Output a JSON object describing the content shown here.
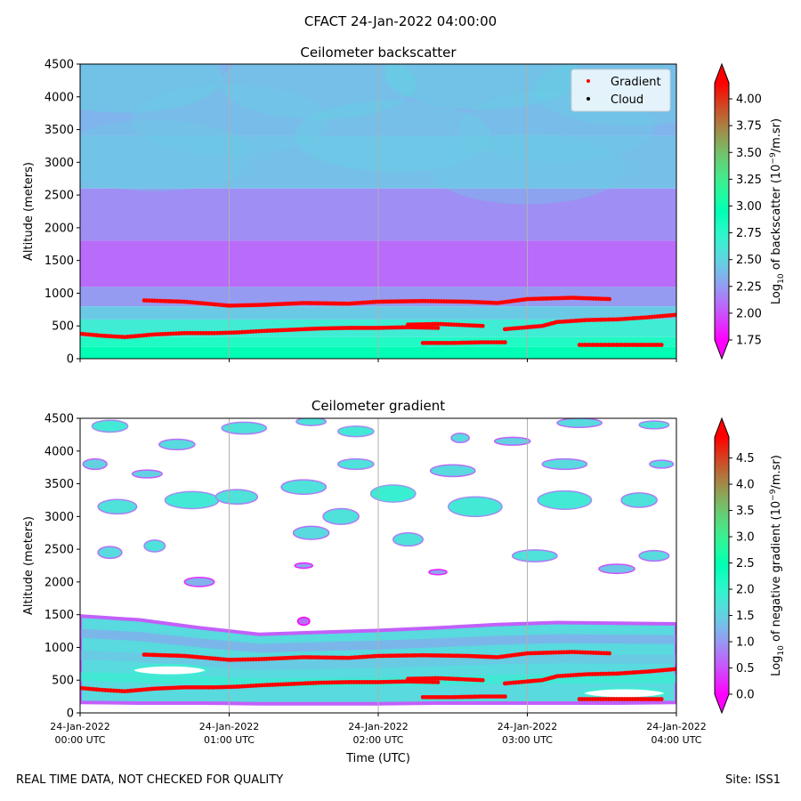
{
  "title": "CFACT 24-Jan-2022 04:00:00",
  "footer_left": "REAL TIME DATA, NOT CHECKED FOR QUALITY",
  "footer_right": "Site: ISS1",
  "chart_data": [
    {
      "type": "heatmap",
      "title": "Ceilometer backscatter",
      "ylabel": "Altitude (meters)",
      "xlabel": "",
      "ylim": [
        0,
        4500
      ],
      "xlim_hours": [
        0,
        4
      ],
      "yticks": [
        0,
        500,
        1000,
        1500,
        2000,
        2500,
        3000,
        3500,
        4000,
        4500
      ],
      "grid_x_hours": [
        1,
        2,
        3
      ],
      "colorbar": {
        "label": "Log10 of backscatter (10^-9/m.sr)",
        "label_parts": [
          "Log",
          "10",
          " of backscatter (10",
          "−9",
          "/m.sr)"
        ],
        "vmin": 1.75,
        "vmax": 4.15,
        "ticks": [
          "1.75",
          "2.00",
          "2.25",
          "2.50",
          "2.75",
          "3.00",
          "3.25",
          "3.50",
          "3.75",
          "4.00"
        ],
        "extend": "both"
      },
      "legend": {
        "position": "upper-right",
        "entries": [
          {
            "label": "Gradient",
            "color": "#ff0000"
          },
          {
            "label": "Cloud",
            "color": "#000000"
          }
        ]
      },
      "field_bands": [
        {
          "y0": 0,
          "y1": 180,
          "value": 2.95
        },
        {
          "y0": 180,
          "y1": 330,
          "value": 2.8
        },
        {
          "y0": 330,
          "y1": 600,
          "value": 2.65
        },
        {
          "y0": 600,
          "y1": 800,
          "value": 2.45
        },
        {
          "y0": 800,
          "y1": 1100,
          "value": 2.25
        },
        {
          "y0": 1100,
          "y1": 1800,
          "value": 2.08
        },
        {
          "y0": 1800,
          "y1": 2600,
          "value": 2.2
        },
        {
          "y0": 2600,
          "y1": 3400,
          "value": 2.4
        },
        {
          "y0": 3400,
          "y1": 4500,
          "value": 2.35
        }
      ],
      "field_features": [
        {
          "x": 0.3,
          "y": 4300,
          "value": 2.55
        },
        {
          "x": 1.6,
          "y": 4200,
          "value": 2.5
        },
        {
          "x": 2.7,
          "y": 4350,
          "value": 2.55
        },
        {
          "x": 3.7,
          "y": 4100,
          "value": 2.5
        },
        {
          "x": 1.0,
          "y": 3650,
          "value": 2.45
        },
        {
          "x": 2.1,
          "y": 3400,
          "value": 2.5
        },
        {
          "x": 3.2,
          "y": 3550,
          "value": 2.45
        },
        {
          "x": 0.5,
          "y": 3100,
          "value": 2.45
        },
        {
          "x": 3.0,
          "y": 2900,
          "value": 2.45
        }
      ],
      "series": [
        {
          "name": "Gradient lower layer",
          "color": "#ff0000",
          "points": [
            [
              0.0,
              380
            ],
            [
              0.15,
              350
            ],
            [
              0.3,
              330
            ],
            [
              0.5,
              370
            ],
            [
              0.7,
              390
            ],
            [
              0.9,
              390
            ],
            [
              1.05,
              400
            ],
            [
              1.2,
              420
            ],
            [
              1.4,
              440
            ],
            [
              1.6,
              460
            ],
            [
              1.8,
              470
            ],
            [
              2.0,
              470
            ],
            [
              2.2,
              480
            ],
            [
              2.4,
              470
            ]
          ]
        },
        {
          "name": "Gradient step",
          "color": "#ff0000",
          "points": [
            [
              2.2,
              520
            ],
            [
              2.4,
              530
            ],
            [
              2.6,
              510
            ],
            [
              2.7,
              500
            ]
          ]
        },
        {
          "name": "Gradient bottom",
          "color": "#ff0000",
          "points": [
            [
              2.3,
              240
            ],
            [
              2.5,
              240
            ],
            [
              2.7,
              250
            ],
            [
              2.85,
              250
            ]
          ]
        },
        {
          "name": "Gradient middle",
          "color": "#ff0000",
          "points": [
            [
              2.85,
              450
            ],
            [
              3.0,
              480
            ],
            [
              3.1,
              500
            ],
            [
              3.2,
              560
            ],
            [
              3.4,
              590
            ],
            [
              3.6,
              600
            ],
            [
              3.8,
              630
            ],
            [
              4.0,
              670
            ]
          ]
        },
        {
          "name": "Gradient lowest right",
          "color": "#ff0000",
          "points": [
            [
              3.35,
              210
            ],
            [
              3.6,
              210
            ],
            [
              3.9,
              210
            ]
          ]
        },
        {
          "name": "Gradient upper layer",
          "color": "#ff0000",
          "points": [
            [
              0.43,
              890
            ],
            [
              0.7,
              870
            ],
            [
              0.85,
              840
            ],
            [
              1.0,
              810
            ],
            [
              1.2,
              820
            ],
            [
              1.5,
              850
            ],
            [
              1.8,
              840
            ],
            [
              2.0,
              870
            ],
            [
              2.3,
              880
            ],
            [
              2.6,
              870
            ],
            [
              2.8,
              850
            ],
            [
              3.0,
              910
            ],
            [
              3.3,
              930
            ],
            [
              3.55,
              910
            ]
          ]
        }
      ]
    },
    {
      "type": "heatmap",
      "title": "Ceilometer gradient",
      "ylabel": "Altitude (meters)",
      "xlabel": "Time (UTC)",
      "ylim": [
        0,
        4500
      ],
      "xlim_hours": [
        0,
        4
      ],
      "yticks": [
        0,
        500,
        1000,
        1500,
        2000,
        2500,
        3000,
        3500,
        4000,
        4500
      ],
      "xticks": [
        {
          "line1": "24-Jan-2022",
          "line2": "00:00 UTC"
        },
        {
          "line1": "24-Jan-2022",
          "line2": "01:00 UTC"
        },
        {
          "line1": "24-Jan-2022",
          "line2": "02:00 UTC"
        },
        {
          "line1": "24-Jan-2022",
          "line2": "03:00 UTC"
        },
        {
          "line1": "24-Jan-2022",
          "line2": "04:00 UTC"
        }
      ],
      "grid_x_hours": [
        1,
        2,
        3
      ],
      "colorbar": {
        "label": "Log10 of negative gradient (10^-9/m.sr)",
        "label_parts": [
          "Log",
          "10",
          " of negative gradient (10",
          "−9",
          "/m.sr)"
        ],
        "vmin": 0.0,
        "vmax": 4.9,
        "ticks": [
          "0.0",
          "0.5",
          "1.0",
          "1.5",
          "2.0",
          "2.5",
          "3.0",
          "3.5",
          "4.0",
          "4.5"
        ],
        "extend": "both"
      },
      "lower_band": {
        "values": [
          {
            "x": 0.0,
            "top": 1480,
            "bottom": 160
          },
          {
            "x": 0.4,
            "top": 1420,
            "bottom": 150
          },
          {
            "x": 0.8,
            "top": 1300,
            "bottom": 150
          },
          {
            "x": 1.2,
            "top": 1200,
            "bottom": 140
          },
          {
            "x": 1.6,
            "top": 1230,
            "bottom": 140
          },
          {
            "x": 2.0,
            "top": 1260,
            "bottom": 140
          },
          {
            "x": 2.4,
            "top": 1300,
            "bottom": 150
          },
          {
            "x": 2.8,
            "top": 1350,
            "bottom": 150
          },
          {
            "x": 3.2,
            "top": 1380,
            "bottom": 150
          },
          {
            "x": 3.6,
            "top": 1370,
            "bottom": 150
          },
          {
            "x": 4.0,
            "top": 1360,
            "bottom": 160
          }
        ],
        "fill_value": 1.6,
        "edge_value": 0.6
      },
      "gaps": [
        {
          "x": 0.6,
          "y": 650,
          "rx": 0.25,
          "ry": 80
        },
        {
          "x": 3.65,
          "y": 300,
          "rx": 0.28,
          "ry": 80
        }
      ],
      "cloud_patches": [
        {
          "x": 0.2,
          "y": 4380,
          "rx": 0.12,
          "ry": 90,
          "value": 1.8
        },
        {
          "x": 0.65,
          "y": 4100,
          "rx": 0.12,
          "ry": 80,
          "value": 1.6
        },
        {
          "x": 1.1,
          "y": 4350,
          "rx": 0.15,
          "ry": 90,
          "value": 1.7
        },
        {
          "x": 1.55,
          "y": 4450,
          "rx": 0.1,
          "ry": 60,
          "value": 1.7
        },
        {
          "x": 1.85,
          "y": 4300,
          "rx": 0.12,
          "ry": 80,
          "value": 1.8
        },
        {
          "x": 2.55,
          "y": 4200,
          "rx": 0.06,
          "ry": 70,
          "value": 1.6
        },
        {
          "x": 2.9,
          "y": 4150,
          "rx": 0.12,
          "ry": 60,
          "value": 1.5
        },
        {
          "x": 3.35,
          "y": 4430,
          "rx": 0.15,
          "ry": 70,
          "value": 1.6
        },
        {
          "x": 3.85,
          "y": 4400,
          "rx": 0.1,
          "ry": 60,
          "value": 1.7
        },
        {
          "x": 0.1,
          "y": 3800,
          "rx": 0.08,
          "ry": 80,
          "value": 1.5
        },
        {
          "x": 0.45,
          "y": 3650,
          "rx": 0.1,
          "ry": 60,
          "value": 1.5
        },
        {
          "x": 1.85,
          "y": 3800,
          "rx": 0.12,
          "ry": 80,
          "value": 1.7
        },
        {
          "x": 2.5,
          "y": 3700,
          "rx": 0.15,
          "ry": 90,
          "value": 1.6
        },
        {
          "x": 3.25,
          "y": 3800,
          "rx": 0.15,
          "ry": 80,
          "value": 1.6
        },
        {
          "x": 3.9,
          "y": 3800,
          "rx": 0.08,
          "ry": 60,
          "value": 1.6
        },
        {
          "x": 0.25,
          "y": 3150,
          "rx": 0.13,
          "ry": 110,
          "value": 1.7
        },
        {
          "x": 0.75,
          "y": 3250,
          "rx": 0.18,
          "ry": 130,
          "value": 1.8
        },
        {
          "x": 1.05,
          "y": 3300,
          "rx": 0.14,
          "ry": 110,
          "value": 1.7
        },
        {
          "x": 1.5,
          "y": 3450,
          "rx": 0.15,
          "ry": 110,
          "value": 1.7
        },
        {
          "x": 2.1,
          "y": 3350,
          "rx": 0.15,
          "ry": 130,
          "value": 1.9
        },
        {
          "x": 2.65,
          "y": 3150,
          "rx": 0.18,
          "ry": 150,
          "value": 1.8
        },
        {
          "x": 3.25,
          "y": 3250,
          "rx": 0.18,
          "ry": 140,
          "value": 1.8
        },
        {
          "x": 3.75,
          "y": 3250,
          "rx": 0.12,
          "ry": 110,
          "value": 1.7
        },
        {
          "x": 1.75,
          "y": 3000,
          "rx": 0.12,
          "ry": 120,
          "value": 1.7
        },
        {
          "x": 0.2,
          "y": 2450,
          "rx": 0.08,
          "ry": 90,
          "value": 1.6
        },
        {
          "x": 0.5,
          "y": 2550,
          "rx": 0.07,
          "ry": 90,
          "value": 1.7
        },
        {
          "x": 1.55,
          "y": 2750,
          "rx": 0.12,
          "ry": 100,
          "value": 1.6
        },
        {
          "x": 2.2,
          "y": 2650,
          "rx": 0.1,
          "ry": 100,
          "value": 1.7
        },
        {
          "x": 3.05,
          "y": 2400,
          "rx": 0.15,
          "ry": 90,
          "value": 1.7
        },
        {
          "x": 3.6,
          "y": 2200,
          "rx": 0.12,
          "ry": 70,
          "value": 1.4
        },
        {
          "x": 3.85,
          "y": 2400,
          "rx": 0.1,
          "ry": 80,
          "value": 1.6
        },
        {
          "x": 0.8,
          "y": 2000,
          "rx": 0.1,
          "ry": 70,
          "value": 1.2
        },
        {
          "x": 1.5,
          "y": 2250,
          "rx": 0.06,
          "ry": 40,
          "value": 1.1
        },
        {
          "x": 2.4,
          "y": 2150,
          "rx": 0.06,
          "ry": 40,
          "value": 1.1
        },
        {
          "x": 1.5,
          "y": 1400,
          "rx": 0.04,
          "ry": 60,
          "value": 0.7
        }
      ],
      "series": [
        {
          "name": "Gradient lower layer",
          "color": "#ff0000",
          "points": [
            [
              0.0,
              380
            ],
            [
              0.15,
              350
            ],
            [
              0.3,
              330
            ],
            [
              0.5,
              370
            ],
            [
              0.7,
              390
            ],
            [
              0.9,
              390
            ],
            [
              1.05,
              400
            ],
            [
              1.2,
              420
            ],
            [
              1.4,
              440
            ],
            [
              1.6,
              460
            ],
            [
              1.8,
              470
            ],
            [
              2.0,
              470
            ],
            [
              2.2,
              480
            ],
            [
              2.4,
              470
            ]
          ]
        },
        {
          "name": "Gradient step",
          "color": "#ff0000",
          "points": [
            [
              2.2,
              520
            ],
            [
              2.4,
              530
            ],
            [
              2.6,
              510
            ],
            [
              2.7,
              500
            ]
          ]
        },
        {
          "name": "Gradient bottom",
          "color": "#ff0000",
          "points": [
            [
              2.3,
              240
            ],
            [
              2.5,
              240
            ],
            [
              2.7,
              250
            ],
            [
              2.85,
              250
            ]
          ]
        },
        {
          "name": "Gradient middle",
          "color": "#ff0000",
          "points": [
            [
              2.85,
              450
            ],
            [
              3.0,
              480
            ],
            [
              3.1,
              500
            ],
            [
              3.2,
              560
            ],
            [
              3.4,
              590
            ],
            [
              3.6,
              600
            ],
            [
              3.8,
              630
            ],
            [
              4.0,
              670
            ]
          ]
        },
        {
          "name": "Gradient lowest right",
          "color": "#ff0000",
          "points": [
            [
              3.35,
              210
            ],
            [
              3.6,
              210
            ],
            [
              3.9,
              210
            ]
          ]
        },
        {
          "name": "Gradient upper layer",
          "color": "#ff0000",
          "points": [
            [
              0.43,
              890
            ],
            [
              0.7,
              870
            ],
            [
              0.85,
              840
            ],
            [
              1.0,
              810
            ],
            [
              1.2,
              820
            ],
            [
              1.5,
              850
            ],
            [
              1.8,
              840
            ],
            [
              2.0,
              870
            ],
            [
              2.3,
              880
            ],
            [
              2.6,
              870
            ],
            [
              2.8,
              850
            ],
            [
              3.0,
              910
            ],
            [
              3.3,
              930
            ],
            [
              3.55,
              910
            ]
          ]
        }
      ]
    }
  ]
}
